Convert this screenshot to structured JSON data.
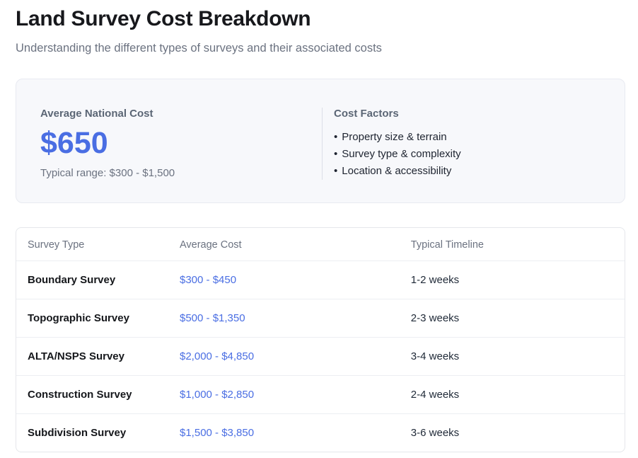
{
  "colors": {
    "accent_blue": "#4a6ee3",
    "title_text": "#17181c",
    "muted_text": "#6b7280",
    "card_bg": "#f7f8fb",
    "border": "#e5e7eb"
  },
  "header": {
    "title": "Land Survey Cost Breakdown",
    "subtitle": "Understanding the different types of surveys and their associated costs"
  },
  "summary": {
    "average_label": "Average National Cost",
    "average_value": "$650",
    "range_text": "Typical range: $300 - $1,500",
    "factors_title": "Cost Factors",
    "bullet_char": "•",
    "factors": [
      "Property size & terrain",
      "Survey type & complexity",
      "Location & accessibility"
    ]
  },
  "table": {
    "columns": [
      "Survey Type",
      "Average Cost",
      "Typical Timeline"
    ],
    "rows": [
      {
        "type": "Boundary Survey",
        "cost": "$300 - $450",
        "timeline": "1-2 weeks"
      },
      {
        "type": "Topographic Survey",
        "cost": "$500 - $1,350",
        "timeline": "2-3 weeks"
      },
      {
        "type": "ALTA/NSPS Survey",
        "cost": "$2,000 - $4,850",
        "timeline": "3-4 weeks"
      },
      {
        "type": "Construction Survey",
        "cost": "$1,000 - $2,850",
        "timeline": "2-4 weeks"
      },
      {
        "type": "Subdivision Survey",
        "cost": "$1,500 - $3,850",
        "timeline": "3-6 weeks"
      }
    ]
  }
}
